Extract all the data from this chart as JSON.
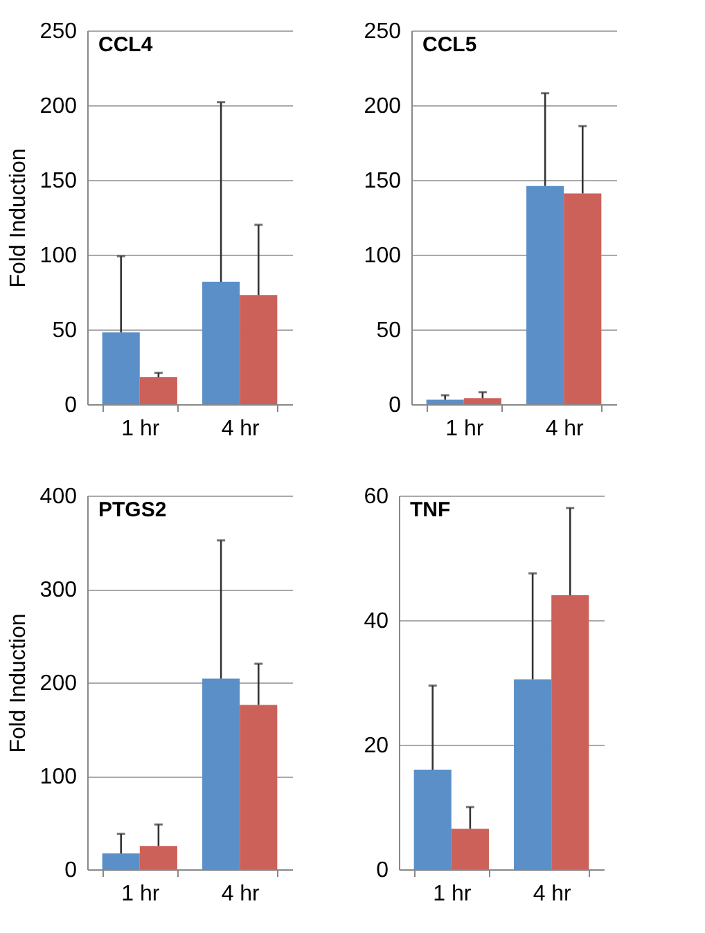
{
  "chart_data": [
    {
      "type": "bar",
      "title": "CCL4",
      "ylabel": "Fold Induction",
      "categories": [
        "1 hr",
        "4 hr"
      ],
      "ylim": [
        0,
        250
      ],
      "yticks": [
        0,
        50,
        100,
        150,
        200,
        250
      ],
      "grid": "y",
      "legend": false,
      "series": [
        {
          "color": "#5b8fc7",
          "values": [
            48,
            82
          ],
          "errors": [
            [
              48,
              99
            ],
            [
              82,
              202
            ]
          ]
        },
        {
          "color": "#cc6159",
          "values": [
            18,
            73
          ],
          "errors": [
            [
              18,
              21
            ],
            [
              73,
              120
            ]
          ]
        }
      ]
    },
    {
      "type": "bar",
      "title": "CCL5",
      "categories": [
        "1 hr",
        "4 hr"
      ],
      "ylim": [
        0,
        250
      ],
      "yticks": [
        0,
        50,
        100,
        150,
        200,
        250
      ],
      "grid": "y",
      "legend": false,
      "series": [
        {
          "color": "#5b8fc7",
          "values": [
            3,
            146
          ],
          "errors": [
            [
              3,
              6
            ],
            [
              146,
              208
            ]
          ]
        },
        {
          "color": "#cc6159",
          "values": [
            4,
            141
          ],
          "errors": [
            [
              4,
              8
            ],
            [
              141,
              186
            ]
          ]
        }
      ]
    },
    {
      "type": "bar",
      "title": "PTGS2",
      "ylabel": "Fold Induction",
      "categories": [
        "1 hr",
        "4 hr"
      ],
      "ylim": [
        0,
        400
      ],
      "yticks": [
        0,
        100,
        200,
        300,
        400
      ],
      "grid": "y",
      "legend": false,
      "series": [
        {
          "color": "#5b8fc7",
          "values": [
            17,
            204
          ],
          "errors": [
            [
              17,
              38
            ],
            [
              204,
              352
            ]
          ]
        },
        {
          "color": "#cc6159",
          "values": [
            25,
            176
          ],
          "errors": [
            [
              25,
              48
            ],
            [
              176,
              220
            ]
          ]
        }
      ]
    },
    {
      "type": "bar",
      "title": "TNF",
      "categories": [
        "1 hr",
        "4 hr"
      ],
      "ylim": [
        0,
        60
      ],
      "yticks": [
        0,
        20,
        40,
        60
      ],
      "grid": "y",
      "legend": false,
      "series": [
        {
          "color": "#5b8fc7",
          "values": [
            16,
            30.5
          ],
          "errors": [
            [
              16,
              29.5
            ],
            [
              30.5,
              47.5
            ]
          ]
        },
        {
          "color": "#cc6159",
          "values": [
            6.5,
            44
          ],
          "errors": [
            [
              6.5,
              10
            ],
            [
              44,
              58
            ]
          ]
        }
      ]
    }
  ]
}
